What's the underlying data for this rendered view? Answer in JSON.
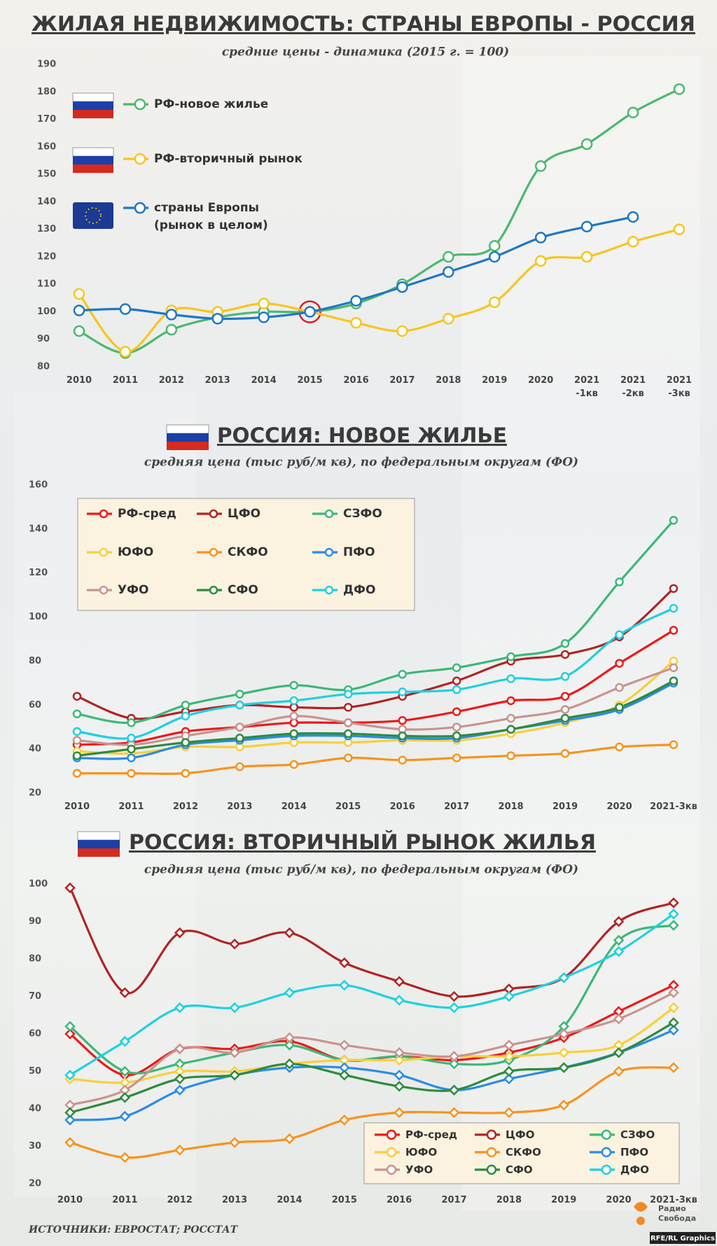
{
  "chart_data": [
    {
      "type": "line",
      "title": "ЖИЛАЯ НЕДВИЖИМОСТЬ: СТРАНЫ ЕВРОПЫ - РОССИЯ",
      "subtitle": "средние цены - динамика (2015 г. = 100)",
      "categories": [
        "2010",
        "2011",
        "2012",
        "2013",
        "2014",
        "2015",
        "2016",
        "2017",
        "2018",
        "2019",
        "2020",
        "2021 -1кв",
        "2021 -2кв",
        "2021 -3кв"
      ],
      "series": [
        {
          "name": "РФ-новое жилье",
          "color": "#4cb86e",
          "values": [
            93,
            85,
            93.5,
            98,
            100,
            100,
            103,
            110,
            120,
            124,
            153,
            161,
            172.5,
            181
          ]
        },
        {
          "name": "РФ-вторичный рынок",
          "color": "#f7c51e",
          "values": [
            106.5,
            85.5,
            100.5,
            100,
            103,
            100,
            96,
            93,
            97.5,
            103.5,
            118.5,
            120,
            125.5,
            130
          ]
        },
        {
          "name": "страны Европы (рынок в целом)",
          "color": "#1f77c4",
          "values": [
            100.5,
            101,
            99,
            97.5,
            98,
            100,
            104,
            109,
            114.5,
            120,
            127,
            131,
            134.5,
            null
          ]
        }
      ],
      "ylim": [
        80,
        190
      ],
      "yticks": [
        80,
        90,
        100,
        110,
        120,
        130,
        140,
        150,
        160,
        170,
        180,
        190
      ],
      "marker": "circle"
    },
    {
      "type": "line",
      "title": "РОССИЯ: НОВОЕ ЖИЛЬЕ",
      "subtitle": "средняя цена (тыс руб/м кв), по федеральным округам (ФО)",
      "categories": [
        "2010",
        "2011",
        "2012",
        "2013",
        "2014",
        "2015",
        "2016",
        "2017",
        "2018",
        "2019",
        "2020",
        "2021-3кв"
      ],
      "series": [
        {
          "name": "РФ-сред",
          "color": "#f01818",
          "values": [
            42,
            43,
            48,
            50,
            52,
            52,
            53,
            57,
            62,
            64,
            79,
            94
          ]
        },
        {
          "name": "ЦФО",
          "color": "#b02424",
          "values": [
            64,
            54,
            57,
            60,
            59,
            59,
            64,
            71,
            80,
            83,
            91,
            113
          ]
        },
        {
          "name": "СЗФО",
          "color": "#3cb878",
          "values": [
            56,
            52,
            60,
            65,
            69,
            67,
            74,
            77,
            82,
            88,
            116,
            144
          ]
        },
        {
          "name": "ЮФО",
          "color": "#f9cf3a",
          "values": [
            39,
            38,
            41,
            41,
            43,
            43,
            44,
            44,
            47,
            52,
            60,
            80
          ]
        },
        {
          "name": "СКФО",
          "color": "#f7931e",
          "values": [
            29,
            29,
            29,
            32,
            33,
            36,
            35,
            36,
            37,
            38,
            41,
            42
          ]
        },
        {
          "name": "ПФО",
          "color": "#2b8ce6",
          "values": [
            36,
            36,
            42,
            44,
            46,
            46,
            45,
            45,
            49,
            53,
            58,
            70
          ]
        },
        {
          "name": "УФО",
          "color": "#c9938f",
          "values": [
            44,
            42,
            46,
            50,
            55,
            52,
            49,
            50,
            54,
            58,
            68,
            77
          ]
        },
        {
          "name": "СФО",
          "color": "#2e8b3e",
          "values": [
            37,
            40,
            43,
            45,
            47,
            47,
            46,
            46,
            49,
            54,
            59,
            71
          ]
        },
        {
          "name": "ДФО",
          "color": "#1fd0e0",
          "values": [
            48,
            45,
            55,
            60,
            62,
            65,
            66,
            67,
            72,
            73,
            92,
            104
          ]
        }
      ],
      "ylim": [
        20,
        160
      ],
      "yticks": [
        20,
        40,
        60,
        80,
        100,
        120,
        140,
        160
      ],
      "marker": "circle"
    },
    {
      "type": "line",
      "title": "РОССИЯ: ВТОРИЧНЫЙ РЫНОК ЖИЛЬЯ",
      "subtitle": "средняя цена (тыс руб/м кв), по федеральным округам (ФО)",
      "categories": [
        "2010",
        "2011",
        "2012",
        "2013",
        "2014",
        "2015",
        "2016",
        "2017",
        "2018",
        "2019",
        "2020",
        "2021-3кв"
      ],
      "series": [
        {
          "name": "РФ-сред",
          "color": "#f01818",
          "values": [
            60,
            49,
            56,
            56,
            58,
            53,
            54,
            53,
            55,
            59,
            66,
            73
          ]
        },
        {
          "name": "ЦФО",
          "color": "#b02424",
          "values": [
            99,
            71,
            87,
            84,
            87,
            79,
            74,
            70,
            72,
            75,
            90,
            95
          ]
        },
        {
          "name": "СЗФО",
          "color": "#3cb878",
          "values": [
            62,
            50,
            52,
            55,
            57,
            53,
            54,
            52,
            53,
            62,
            85,
            89
          ]
        },
        {
          "name": "ЮФО",
          "color": "#f9cf3a",
          "values": [
            48,
            47,
            50,
            50,
            52,
            53,
            53,
            54,
            54,
            55,
            57,
            67
          ]
        },
        {
          "name": "СКФО",
          "color": "#f7931e",
          "values": [
            31,
            27,
            29,
            31,
            32,
            37,
            39,
            39,
            39,
            41,
            50,
            51
          ]
        },
        {
          "name": "ПФО",
          "color": "#2b8ce6",
          "values": [
            37,
            38,
            45,
            49,
            51,
            51,
            49,
            45,
            48,
            51,
            55,
            61
          ]
        },
        {
          "name": "УФО",
          "color": "#c9938f",
          "values": [
            41,
            45,
            56,
            55,
            59,
            57,
            55,
            54,
            57,
            60,
            64,
            71
          ]
        },
        {
          "name": "СФО",
          "color": "#2e8b3e",
          "values": [
            39,
            43,
            48,
            49,
            52,
            49,
            46,
            45,
            50,
            51,
            55,
            63
          ]
        },
        {
          "name": "ДФО",
          "color": "#1fd0e0",
          "values": [
            49,
            58,
            67,
            67,
            71,
            73,
            69,
            67,
            70,
            75,
            82,
            92
          ]
        }
      ],
      "ylim": [
        20,
        100
      ],
      "yticks": [
        20,
        30,
        40,
        50,
        60,
        70,
        80,
        90,
        100
      ],
      "marker": "diamond"
    }
  ],
  "footer": {
    "source": "ИСТОЧНИКИ: ЕВРОСТАТ; РОССТАТ",
    "logo_line1": "Радио",
    "logo_line2": "Свобода",
    "credit": "RFE/RL Graphics"
  }
}
